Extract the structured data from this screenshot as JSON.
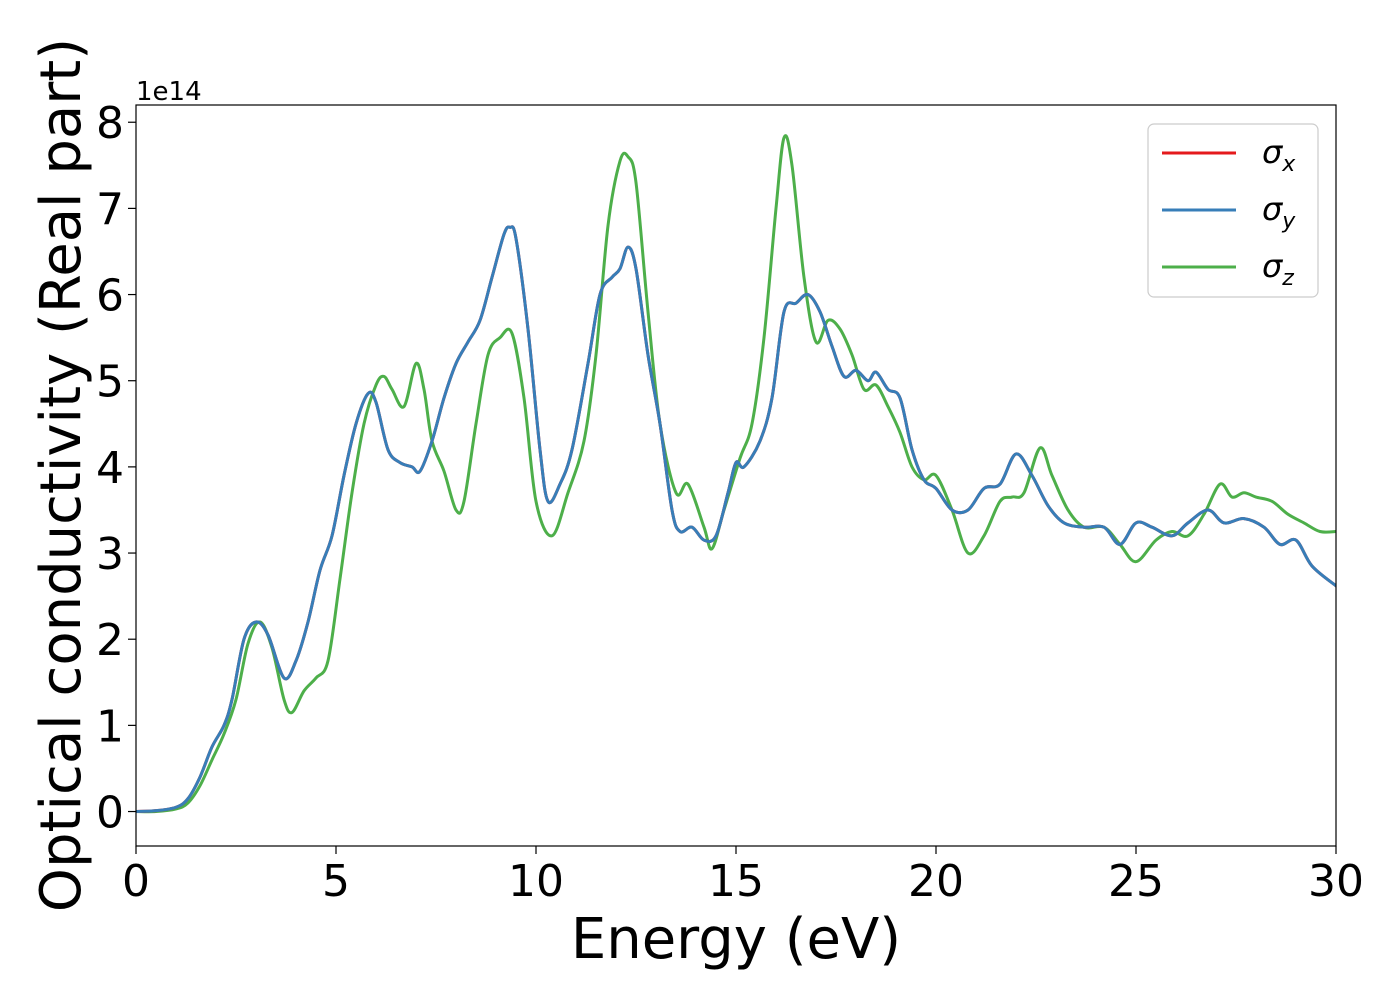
{
  "chart_data": {
    "type": "line",
    "xlabel": "Energy (eV)",
    "ylabel": "Optical conductivity (Real part)",
    "offset_label": "1e14",
    "xlim": [
      0,
      30
    ],
    "ylim": [
      -0.4,
      8.2
    ],
    "x_ticks": [
      0,
      5,
      10,
      15,
      20,
      25,
      30
    ],
    "x_tick_labels": [
      "0",
      "5",
      "10",
      "15",
      "20",
      "25",
      "30"
    ],
    "y_ticks": [
      0,
      1,
      2,
      3,
      4,
      5,
      6,
      7,
      8
    ],
    "y_tick_labels": [
      "0",
      "1",
      "2",
      "3",
      "4",
      "5",
      "6",
      "7",
      "8"
    ],
    "grid": false,
    "legend_position": "top-right",
    "series": [
      {
        "key": "x",
        "symbol": "σ",
        "subscript": "x",
        "color": "#e41a1c",
        "points": [
          [
            0,
            0
          ],
          [
            0.5,
            0.01
          ],
          [
            1.0,
            0.05
          ],
          [
            1.3,
            0.15
          ],
          [
            1.6,
            0.4
          ],
          [
            1.9,
            0.75
          ],
          [
            2.2,
            1.0
          ],
          [
            2.4,
            1.3
          ],
          [
            2.7,
            2.0
          ],
          [
            3.0,
            2.2
          ],
          [
            3.3,
            2.05
          ],
          [
            3.7,
            1.55
          ],
          [
            4.0,
            1.75
          ],
          [
            4.3,
            2.2
          ],
          [
            4.6,
            2.8
          ],
          [
            4.9,
            3.2
          ],
          [
            5.2,
            3.9
          ],
          [
            5.5,
            4.5
          ],
          [
            5.8,
            4.85
          ],
          [
            6.0,
            4.75
          ],
          [
            6.3,
            4.2
          ],
          [
            6.6,
            4.05
          ],
          [
            6.9,
            4.0
          ],
          [
            7.1,
            3.95
          ],
          [
            7.4,
            4.3
          ],
          [
            7.7,
            4.8
          ],
          [
            8.0,
            5.2
          ],
          [
            8.3,
            5.45
          ],
          [
            8.6,
            5.7
          ],
          [
            8.9,
            6.2
          ],
          [
            9.2,
            6.7
          ],
          [
            9.35,
            6.78
          ],
          [
            9.5,
            6.65
          ],
          [
            9.8,
            5.6
          ],
          [
            10.1,
            4.2
          ],
          [
            10.3,
            3.6
          ],
          [
            10.6,
            3.8
          ],
          [
            10.9,
            4.2
          ],
          [
            11.3,
            5.2
          ],
          [
            11.6,
            6.0
          ],
          [
            11.9,
            6.2
          ],
          [
            12.1,
            6.3
          ],
          [
            12.3,
            6.55
          ],
          [
            12.5,
            6.3
          ],
          [
            12.8,
            5.3
          ],
          [
            13.1,
            4.5
          ],
          [
            13.4,
            3.5
          ],
          [
            13.6,
            3.25
          ],
          [
            13.9,
            3.3
          ],
          [
            14.2,
            3.15
          ],
          [
            14.5,
            3.2
          ],
          [
            14.8,
            3.7
          ],
          [
            15.0,
            4.05
          ],
          [
            15.2,
            4.0
          ],
          [
            15.6,
            4.3
          ],
          [
            15.9,
            4.8
          ],
          [
            16.2,
            5.8
          ],
          [
            16.5,
            5.9
          ],
          [
            16.8,
            6.0
          ],
          [
            17.1,
            5.8
          ],
          [
            17.4,
            5.4
          ],
          [
            17.7,
            5.05
          ],
          [
            18.0,
            5.12
          ],
          [
            18.3,
            5.0
          ],
          [
            18.5,
            5.1
          ],
          [
            18.8,
            4.9
          ],
          [
            19.1,
            4.8
          ],
          [
            19.4,
            4.2
          ],
          [
            19.7,
            3.85
          ],
          [
            20.0,
            3.75
          ],
          [
            20.4,
            3.5
          ],
          [
            20.8,
            3.5
          ],
          [
            21.2,
            3.75
          ],
          [
            21.6,
            3.8
          ],
          [
            22.0,
            4.15
          ],
          [
            22.4,
            3.9
          ],
          [
            22.8,
            3.55
          ],
          [
            23.2,
            3.35
          ],
          [
            23.7,
            3.3
          ],
          [
            24.2,
            3.3
          ],
          [
            24.6,
            3.1
          ],
          [
            25.0,
            3.35
          ],
          [
            25.4,
            3.3
          ],
          [
            25.9,
            3.2
          ],
          [
            26.3,
            3.35
          ],
          [
            26.8,
            3.5
          ],
          [
            27.2,
            3.35
          ],
          [
            27.7,
            3.4
          ],
          [
            28.2,
            3.3
          ],
          [
            28.6,
            3.1
          ],
          [
            29.0,
            3.15
          ],
          [
            29.4,
            2.85
          ],
          [
            30.0,
            2.62
          ]
        ]
      },
      {
        "key": "y",
        "symbol": "σ",
        "subscript": "y",
        "color": "#377eb8",
        "points": [
          [
            0,
            0
          ],
          [
            0.5,
            0.01
          ],
          [
            1.0,
            0.05
          ],
          [
            1.3,
            0.15
          ],
          [
            1.6,
            0.4
          ],
          [
            1.9,
            0.75
          ],
          [
            2.2,
            1.0
          ],
          [
            2.4,
            1.3
          ],
          [
            2.7,
            2.0
          ],
          [
            3.0,
            2.2
          ],
          [
            3.3,
            2.05
          ],
          [
            3.7,
            1.55
          ],
          [
            4.0,
            1.75
          ],
          [
            4.3,
            2.2
          ],
          [
            4.6,
            2.8
          ],
          [
            4.9,
            3.2
          ],
          [
            5.2,
            3.9
          ],
          [
            5.5,
            4.5
          ],
          [
            5.8,
            4.85
          ],
          [
            6.0,
            4.75
          ],
          [
            6.3,
            4.2
          ],
          [
            6.6,
            4.05
          ],
          [
            6.9,
            4.0
          ],
          [
            7.1,
            3.95
          ],
          [
            7.4,
            4.3
          ],
          [
            7.7,
            4.8
          ],
          [
            8.0,
            5.2
          ],
          [
            8.3,
            5.45
          ],
          [
            8.6,
            5.7
          ],
          [
            8.9,
            6.2
          ],
          [
            9.2,
            6.7
          ],
          [
            9.35,
            6.78
          ],
          [
            9.5,
            6.65
          ],
          [
            9.8,
            5.6
          ],
          [
            10.1,
            4.2
          ],
          [
            10.3,
            3.6
          ],
          [
            10.6,
            3.8
          ],
          [
            10.9,
            4.2
          ],
          [
            11.3,
            5.2
          ],
          [
            11.6,
            6.0
          ],
          [
            11.9,
            6.2
          ],
          [
            12.1,
            6.3
          ],
          [
            12.3,
            6.55
          ],
          [
            12.5,
            6.3
          ],
          [
            12.8,
            5.3
          ],
          [
            13.1,
            4.5
          ],
          [
            13.4,
            3.5
          ],
          [
            13.6,
            3.25
          ],
          [
            13.9,
            3.3
          ],
          [
            14.2,
            3.15
          ],
          [
            14.5,
            3.2
          ],
          [
            14.8,
            3.7
          ],
          [
            15.0,
            4.05
          ],
          [
            15.2,
            4.0
          ],
          [
            15.6,
            4.3
          ],
          [
            15.9,
            4.8
          ],
          [
            16.2,
            5.8
          ],
          [
            16.5,
            5.9
          ],
          [
            16.8,
            6.0
          ],
          [
            17.1,
            5.8
          ],
          [
            17.4,
            5.4
          ],
          [
            17.7,
            5.05
          ],
          [
            18.0,
            5.12
          ],
          [
            18.3,
            5.0
          ],
          [
            18.5,
            5.1
          ],
          [
            18.8,
            4.9
          ],
          [
            19.1,
            4.8
          ],
          [
            19.4,
            4.2
          ],
          [
            19.7,
            3.85
          ],
          [
            20.0,
            3.75
          ],
          [
            20.4,
            3.5
          ],
          [
            20.8,
            3.5
          ],
          [
            21.2,
            3.75
          ],
          [
            21.6,
            3.8
          ],
          [
            22.0,
            4.15
          ],
          [
            22.4,
            3.9
          ],
          [
            22.8,
            3.55
          ],
          [
            23.2,
            3.35
          ],
          [
            23.7,
            3.3
          ],
          [
            24.2,
            3.3
          ],
          [
            24.6,
            3.1
          ],
          [
            25.0,
            3.35
          ],
          [
            25.4,
            3.3
          ],
          [
            25.9,
            3.2
          ],
          [
            26.3,
            3.35
          ],
          [
            26.8,
            3.5
          ],
          [
            27.2,
            3.35
          ],
          [
            27.7,
            3.4
          ],
          [
            28.2,
            3.3
          ],
          [
            28.6,
            3.1
          ],
          [
            29.0,
            3.15
          ],
          [
            29.4,
            2.85
          ],
          [
            30.0,
            2.62
          ]
        ]
      },
      {
        "key": "z",
        "symbol": "σ",
        "subscript": "z",
        "color": "#4daf4a",
        "points": [
          [
            0,
            0
          ],
          [
            0.5,
            0.0
          ],
          [
            1.0,
            0.03
          ],
          [
            1.3,
            0.1
          ],
          [
            1.6,
            0.3
          ],
          [
            1.9,
            0.6
          ],
          [
            2.2,
            0.9
          ],
          [
            2.5,
            1.3
          ],
          [
            2.8,
            1.95
          ],
          [
            3.1,
            2.2
          ],
          [
            3.4,
            1.9
          ],
          [
            3.7,
            1.3
          ],
          [
            3.9,
            1.15
          ],
          [
            4.2,
            1.4
          ],
          [
            4.5,
            1.55
          ],
          [
            4.8,
            1.75
          ],
          [
            5.1,
            2.7
          ],
          [
            5.4,
            3.7
          ],
          [
            5.7,
            4.5
          ],
          [
            6.0,
            4.95
          ],
          [
            6.2,
            5.05
          ],
          [
            6.4,
            4.9
          ],
          [
            6.7,
            4.7
          ],
          [
            7.0,
            5.2
          ],
          [
            7.2,
            4.9
          ],
          [
            7.4,
            4.3
          ],
          [
            7.7,
            3.95
          ],
          [
            8.0,
            3.5
          ],
          [
            8.2,
            3.6
          ],
          [
            8.5,
            4.5
          ],
          [
            8.8,
            5.3
          ],
          [
            9.1,
            5.5
          ],
          [
            9.4,
            5.55
          ],
          [
            9.7,
            4.8
          ],
          [
            10.0,
            3.6
          ],
          [
            10.4,
            3.2
          ],
          [
            10.8,
            3.7
          ],
          [
            11.2,
            4.3
          ],
          [
            11.5,
            5.3
          ],
          [
            11.8,
            6.8
          ],
          [
            12.1,
            7.55
          ],
          [
            12.3,
            7.6
          ],
          [
            12.5,
            7.3
          ],
          [
            12.8,
            5.8
          ],
          [
            13.1,
            4.5
          ],
          [
            13.5,
            3.7
          ],
          [
            13.8,
            3.8
          ],
          [
            14.2,
            3.3
          ],
          [
            14.4,
            3.05
          ],
          [
            14.7,
            3.5
          ],
          [
            15.1,
            4.1
          ],
          [
            15.4,
            4.5
          ],
          [
            15.7,
            5.5
          ],
          [
            16.0,
            7.0
          ],
          [
            16.2,
            7.82
          ],
          [
            16.4,
            7.5
          ],
          [
            16.7,
            6.2
          ],
          [
            17.0,
            5.45
          ],
          [
            17.3,
            5.7
          ],
          [
            17.6,
            5.6
          ],
          [
            17.9,
            5.3
          ],
          [
            18.2,
            4.9
          ],
          [
            18.5,
            4.95
          ],
          [
            18.8,
            4.7
          ],
          [
            19.1,
            4.4
          ],
          [
            19.4,
            4.0
          ],
          [
            19.7,
            3.85
          ],
          [
            20.0,
            3.9
          ],
          [
            20.4,
            3.5
          ],
          [
            20.8,
            3.0
          ],
          [
            21.2,
            3.2
          ],
          [
            21.6,
            3.6
          ],
          [
            21.9,
            3.65
          ],
          [
            22.2,
            3.7
          ],
          [
            22.6,
            4.22
          ],
          [
            22.9,
            3.9
          ],
          [
            23.3,
            3.5
          ],
          [
            23.7,
            3.3
          ],
          [
            24.2,
            3.3
          ],
          [
            24.6,
            3.1
          ],
          [
            25.0,
            2.9
          ],
          [
            25.5,
            3.15
          ],
          [
            25.9,
            3.25
          ],
          [
            26.3,
            3.2
          ],
          [
            26.7,
            3.45
          ],
          [
            27.1,
            3.8
          ],
          [
            27.4,
            3.65
          ],
          [
            27.7,
            3.7
          ],
          [
            28.0,
            3.65
          ],
          [
            28.4,
            3.6
          ],
          [
            28.8,
            3.45
          ],
          [
            29.2,
            3.35
          ],
          [
            29.6,
            3.25
          ],
          [
            30.0,
            3.25
          ]
        ]
      }
    ]
  }
}
